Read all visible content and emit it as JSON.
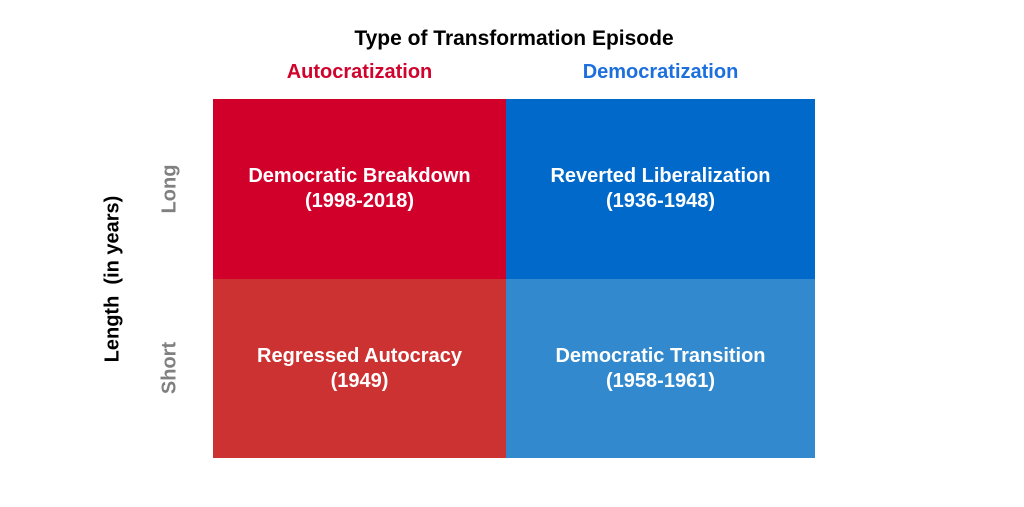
{
  "title": "Type of Transformation Episode",
  "columns": [
    {
      "label": "Autocratization",
      "color": "#D0032C",
      "style": "color:#D0032C"
    },
    {
      "label": "Democratization",
      "color": "#1C6FDD",
      "style": "color:#1C6FDD"
    }
  ],
  "y_axis": {
    "label": "Length  (in years)",
    "row_labels": [
      {
        "label": "Long",
        "color": "#808080"
      },
      {
        "label": "Short",
        "color": "#808080"
      }
    ]
  },
  "quadrants": [
    {
      "row": "Long",
      "column": "Autocratization",
      "name": "Democratic Breakdown",
      "years": "(1998-2018)",
      "bg": "#D0002B",
      "text_color": "#FFFFFF",
      "style": "background:#D0002B"
    },
    {
      "row": "Long",
      "column": "Democratization",
      "name": "Reverted Liberalization",
      "years": "(1936-1948)",
      "bg": "#0169C9",
      "text_color": "#FFFFFF",
      "style": "background:#0169C9"
    },
    {
      "row": "Short",
      "column": "Autocratization",
      "name": "Regressed Autocracy",
      "years": "(1949)",
      "bg": "#CD3232",
      "text_color": "#FFFFFF",
      "style": "background:#CD3232"
    },
    {
      "row": "Short",
      "column": "Democratization",
      "name": "Democratic Transition",
      "years": "(1958-1961)",
      "bg": "#3289CD",
      "text_color": "#FFFFFF",
      "style": "background:#3289CD"
    }
  ]
}
